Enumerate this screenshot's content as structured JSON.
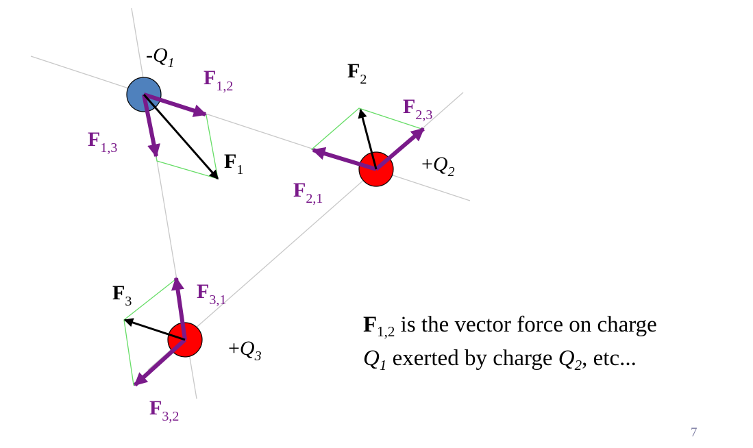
{
  "colors": {
    "force_component": "#7a1a8a",
    "net_force": "#000000",
    "parallelogram": "#66dd66",
    "guide_line": "#c8c8c8",
    "negative_charge": "#4f81bd",
    "positive_charge": "#ff0000",
    "page_number": "#7a7aa0"
  },
  "charges": [
    {
      "id": "q1",
      "sign": "-",
      "symbol": "Q",
      "index": "1",
      "color_key": "negative_charge"
    },
    {
      "id": "q2",
      "sign": "+",
      "symbol": "Q",
      "index": "2",
      "color_key": "positive_charge"
    },
    {
      "id": "q3",
      "sign": "+",
      "symbol": "Q",
      "index": "3",
      "color_key": "positive_charge"
    }
  ],
  "force_labels": {
    "f12": {
      "main": "F",
      "sub": "1,2"
    },
    "f13": {
      "main": "F",
      "sub": "1,3"
    },
    "f1": {
      "main": "F",
      "sub": "1"
    },
    "f2": {
      "main": "F",
      "sub": "2"
    },
    "f21": {
      "main": "F",
      "sub": "2,1"
    },
    "f23": {
      "main": "F",
      "sub": "2,3"
    },
    "f3": {
      "main": "F",
      "sub": "3"
    },
    "f31": {
      "main": "F",
      "sub": "3,1"
    },
    "f32": {
      "main": "F",
      "sub": "3,2"
    }
  },
  "caption": {
    "force_symbol": "F",
    "force_sub": "1,2",
    "text_1": " is the vector force on charge",
    "q_symbol_a": "Q",
    "q_sub_a": "1",
    "text_2": " exerted by charge ",
    "q_symbol_b": "Q",
    "q_sub_b": "2",
    "text_3": ", etc..."
  },
  "page_number": "7"
}
